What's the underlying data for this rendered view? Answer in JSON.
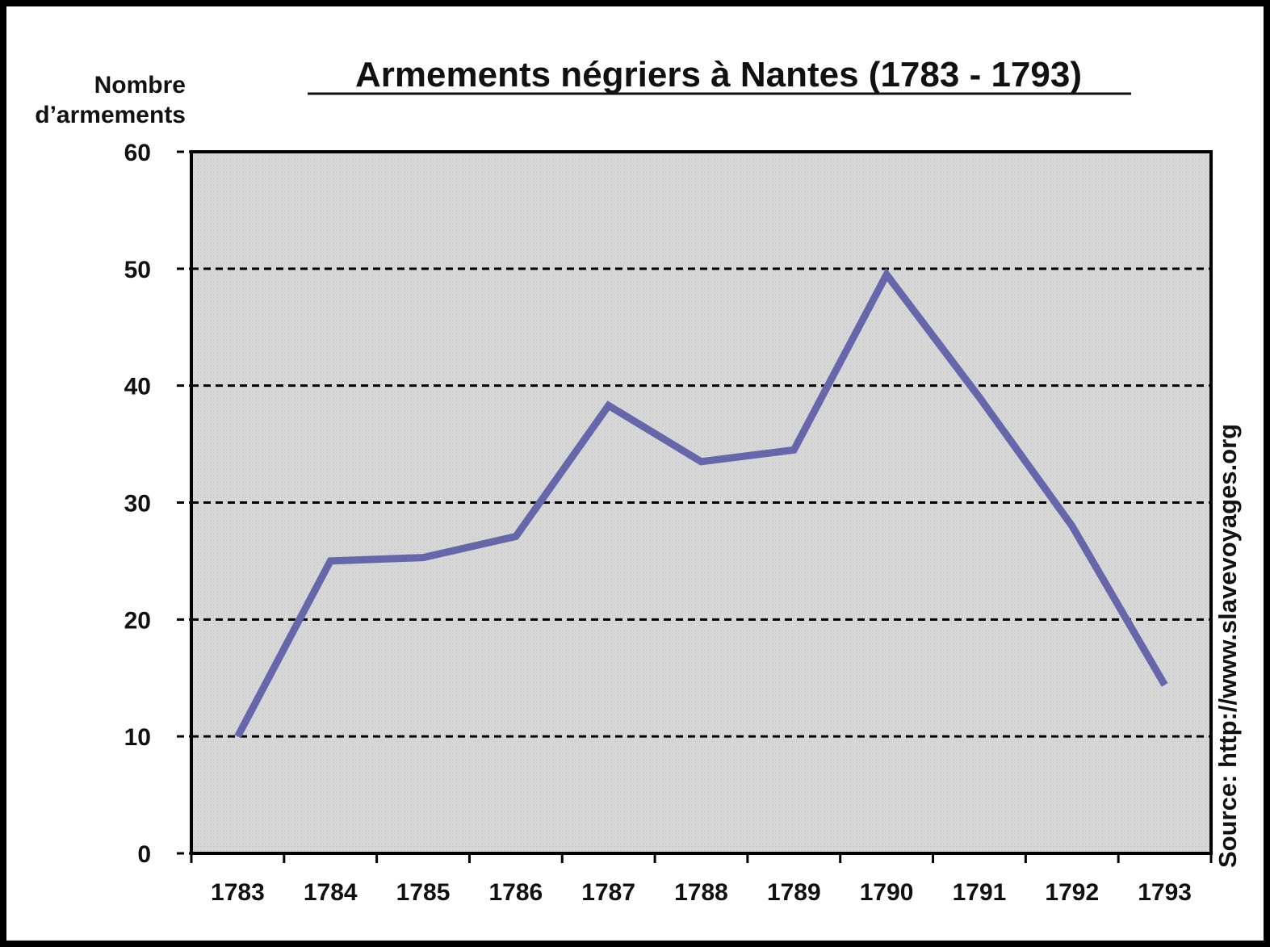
{
  "chart_data": {
    "type": "line",
    "title": "Armements négriers à Nantes (1783 - 1793)",
    "ylabel": [
      "Nombre",
      "d’armements"
    ],
    "xlabel": "",
    "source": "Source: http://www.slavevoyages.org",
    "categories": [
      "1783",
      "1784",
      "1785",
      "1786",
      "1787",
      "1788",
      "1789",
      "1790",
      "1791",
      "1792",
      "1793"
    ],
    "values": [
      10,
      25,
      25.3,
      27.1,
      38.3,
      33.5,
      34.5,
      49.5,
      39,
      28,
      14.4
    ],
    "ylim": [
      0,
      60
    ],
    "yticks": [
      "0",
      "10",
      "20",
      "30",
      "40",
      "50",
      "60"
    ],
    "grid": true,
    "colors": {
      "line": "#6666aa",
      "plot_background": "#dcdcdc",
      "frame": "#000000",
      "gridline": "#000000"
    }
  }
}
